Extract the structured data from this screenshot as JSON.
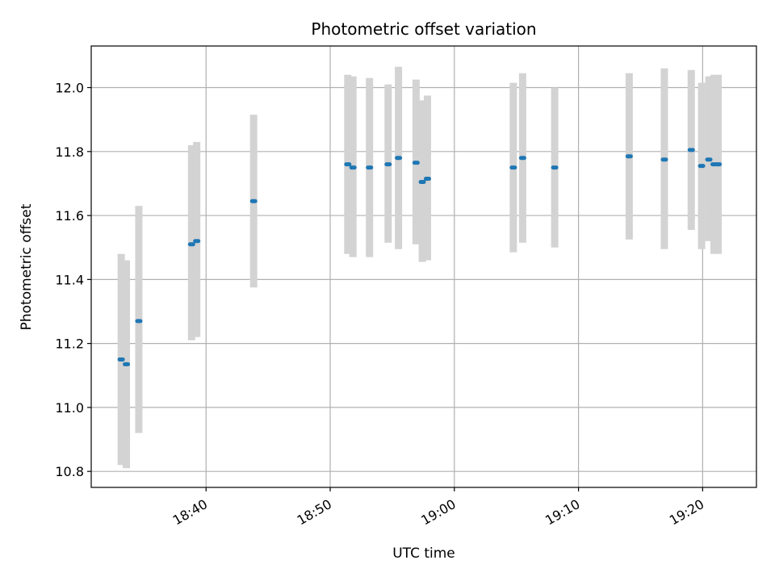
{
  "chart_data": {
    "type": "scatter",
    "title": "Photometric offset variation",
    "xlabel": "UTC time",
    "ylabel": "Photometric offset",
    "xlim": [
      "18:30:45",
      "19:24:20"
    ],
    "ylim": [
      10.75,
      12.13
    ],
    "x_ticks": [
      "18:40",
      "18:50",
      "19:00",
      "19:10",
      "19:20"
    ],
    "y_ticks": [
      "10.8",
      "11.0",
      "11.2",
      "11.4",
      "11.6",
      "11.8",
      "12.0"
    ],
    "grid": true,
    "colors": {
      "point": "#1f77b4",
      "errorbar": "#d3d3d3",
      "grid": "#b0b0b0"
    },
    "series": [
      {
        "points": [
          {
            "t": "18:33:10",
            "y": 11.15,
            "lo": 10.82,
            "hi": 11.48
          },
          {
            "t": "18:33:35",
            "y": 11.135,
            "lo": 10.81,
            "hi": 11.46
          },
          {
            "t": "18:34:35",
            "y": 11.27,
            "lo": 10.92,
            "hi": 11.63
          },
          {
            "t": "18:38:50",
            "y": 11.51,
            "lo": 11.21,
            "hi": 11.82
          },
          {
            "t": "18:39:15",
            "y": 11.52,
            "lo": 11.22,
            "hi": 11.83
          },
          {
            "t": "18:43:50",
            "y": 11.645,
            "lo": 11.375,
            "hi": 11.915
          },
          {
            "t": "18:51:25",
            "y": 11.76,
            "lo": 11.48,
            "hi": 12.04
          },
          {
            "t": "18:51:50",
            "y": 11.75,
            "lo": 11.47,
            "hi": 12.035
          },
          {
            "t": "18:53:10",
            "y": 11.75,
            "lo": 11.47,
            "hi": 12.03
          },
          {
            "t": "18:54:40",
            "y": 11.76,
            "lo": 11.515,
            "hi": 12.01
          },
          {
            "t": "18:55:30",
            "y": 11.78,
            "lo": 11.495,
            "hi": 12.065
          },
          {
            "t": "18:56:55",
            "y": 11.765,
            "lo": 11.51,
            "hi": 12.025
          },
          {
            "t": "18:57:25",
            "y": 11.705,
            "lo": 11.455,
            "hi": 11.96
          },
          {
            "t": "18:57:50",
            "y": 11.715,
            "lo": 11.46,
            "hi": 11.975
          },
          {
            "t": "19:04:45",
            "y": 11.75,
            "lo": 11.485,
            "hi": 12.015
          },
          {
            "t": "19:05:30",
            "y": 11.78,
            "lo": 11.515,
            "hi": 12.045
          },
          {
            "t": "19:08:05",
            "y": 11.75,
            "lo": 11.5,
            "hi": 12.0
          },
          {
            "t": "19:14:05",
            "y": 11.785,
            "lo": 11.525,
            "hi": 12.045
          },
          {
            "t": "19:16:55",
            "y": 11.775,
            "lo": 11.495,
            "hi": 12.06
          },
          {
            "t": "19:19:05",
            "y": 11.805,
            "lo": 11.555,
            "hi": 12.055
          },
          {
            "t": "19:19:55",
            "y": 11.755,
            "lo": 11.495,
            "hi": 12.015
          },
          {
            "t": "19:20:30",
            "y": 11.775,
            "lo": 11.52,
            "hi": 12.035
          },
          {
            "t": "19:20:55",
            "y": 11.76,
            "lo": 11.48,
            "hi": 12.04
          },
          {
            "t": "19:21:15",
            "y": 11.76,
            "lo": 11.48,
            "hi": 12.04
          }
        ]
      }
    ]
  }
}
